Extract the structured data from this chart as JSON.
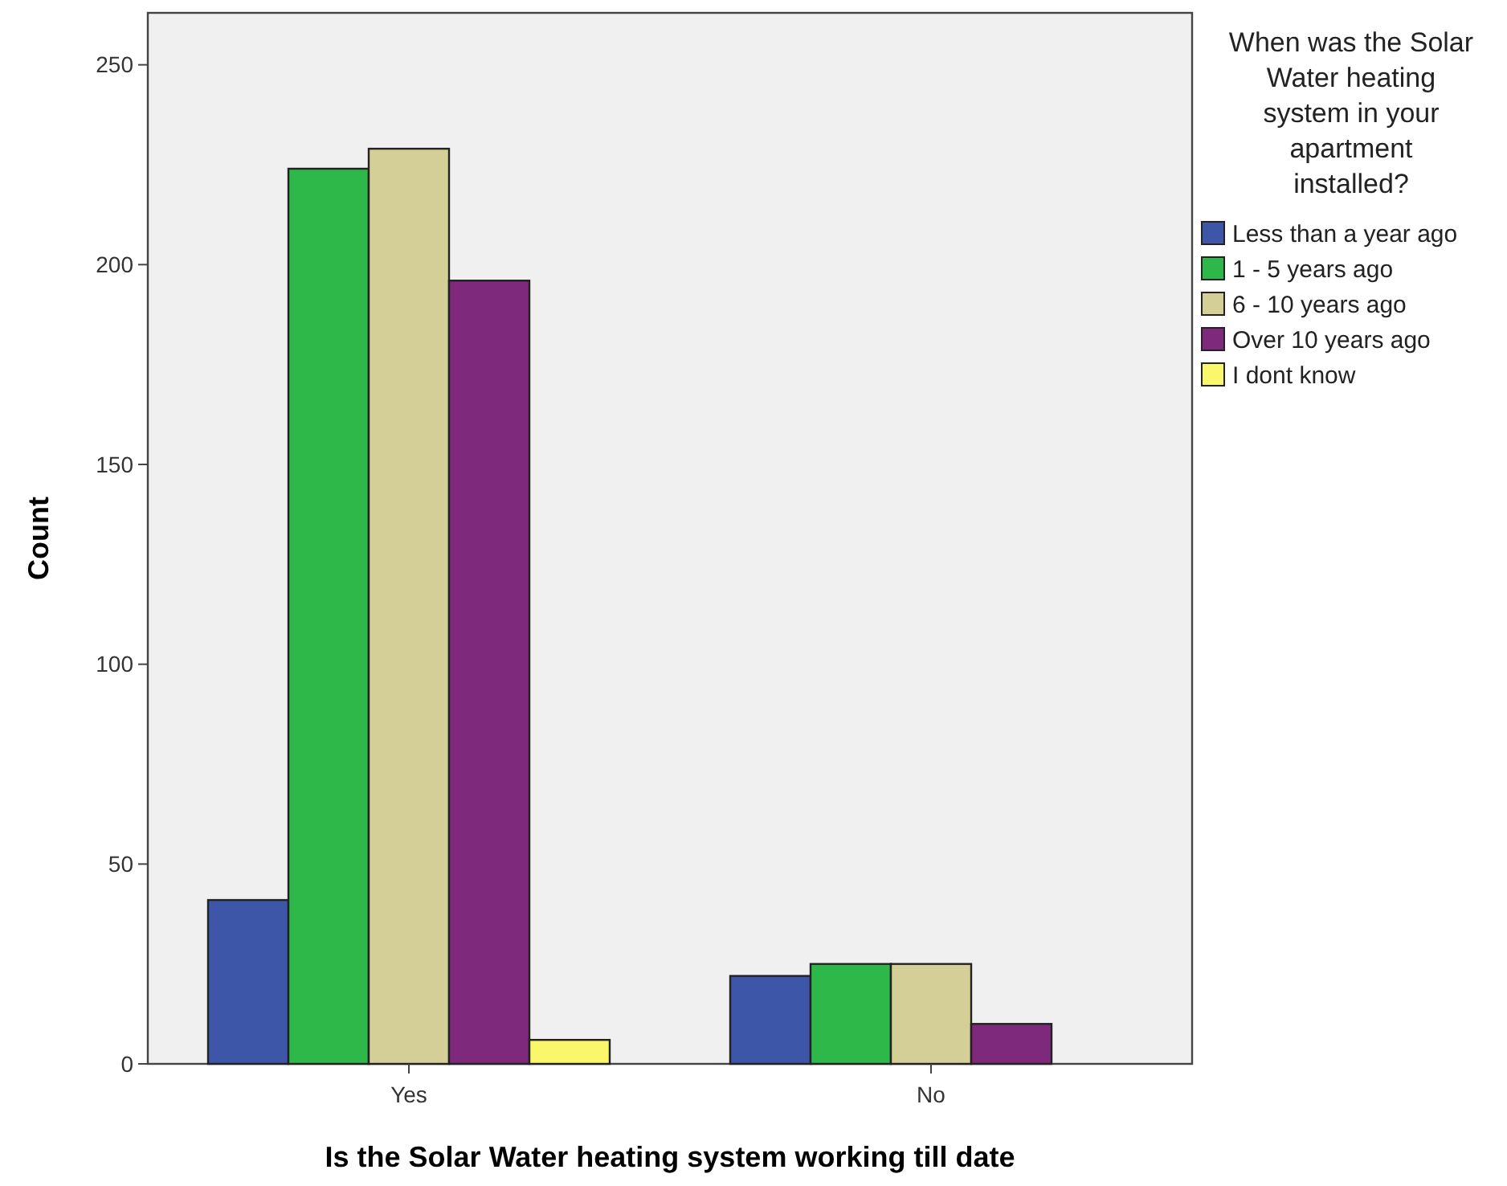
{
  "chart_data": {
    "type": "bar",
    "xlabel": "Is the Solar Water heating system working till date",
    "ylabel": "Count",
    "legend_title": "When was the Solar Water heating system in your apartment installed?",
    "legend": "right",
    "categories": [
      "Yes",
      "No"
    ],
    "ylim": [
      0,
      263
    ],
    "yticks": [
      0,
      50,
      100,
      150,
      200,
      250
    ],
    "series": [
      {
        "name": "Less than a year ago",
        "color": "#3d56a8",
        "values": [
          41,
          22
        ]
      },
      {
        "name": "1 - 5 years ago",
        "color": "#2fb84a",
        "values": [
          224,
          25
        ]
      },
      {
        "name": "6 - 10 years ago",
        "color": "#d3cf96",
        "values": [
          229,
          25
        ]
      },
      {
        "name": "Over 10 years ago",
        "color": "#7e297c",
        "values": [
          196,
          10
        ]
      },
      {
        "name": "I dont know",
        "color": "#fbf76a",
        "values": [
          6,
          null
        ]
      }
    ]
  }
}
